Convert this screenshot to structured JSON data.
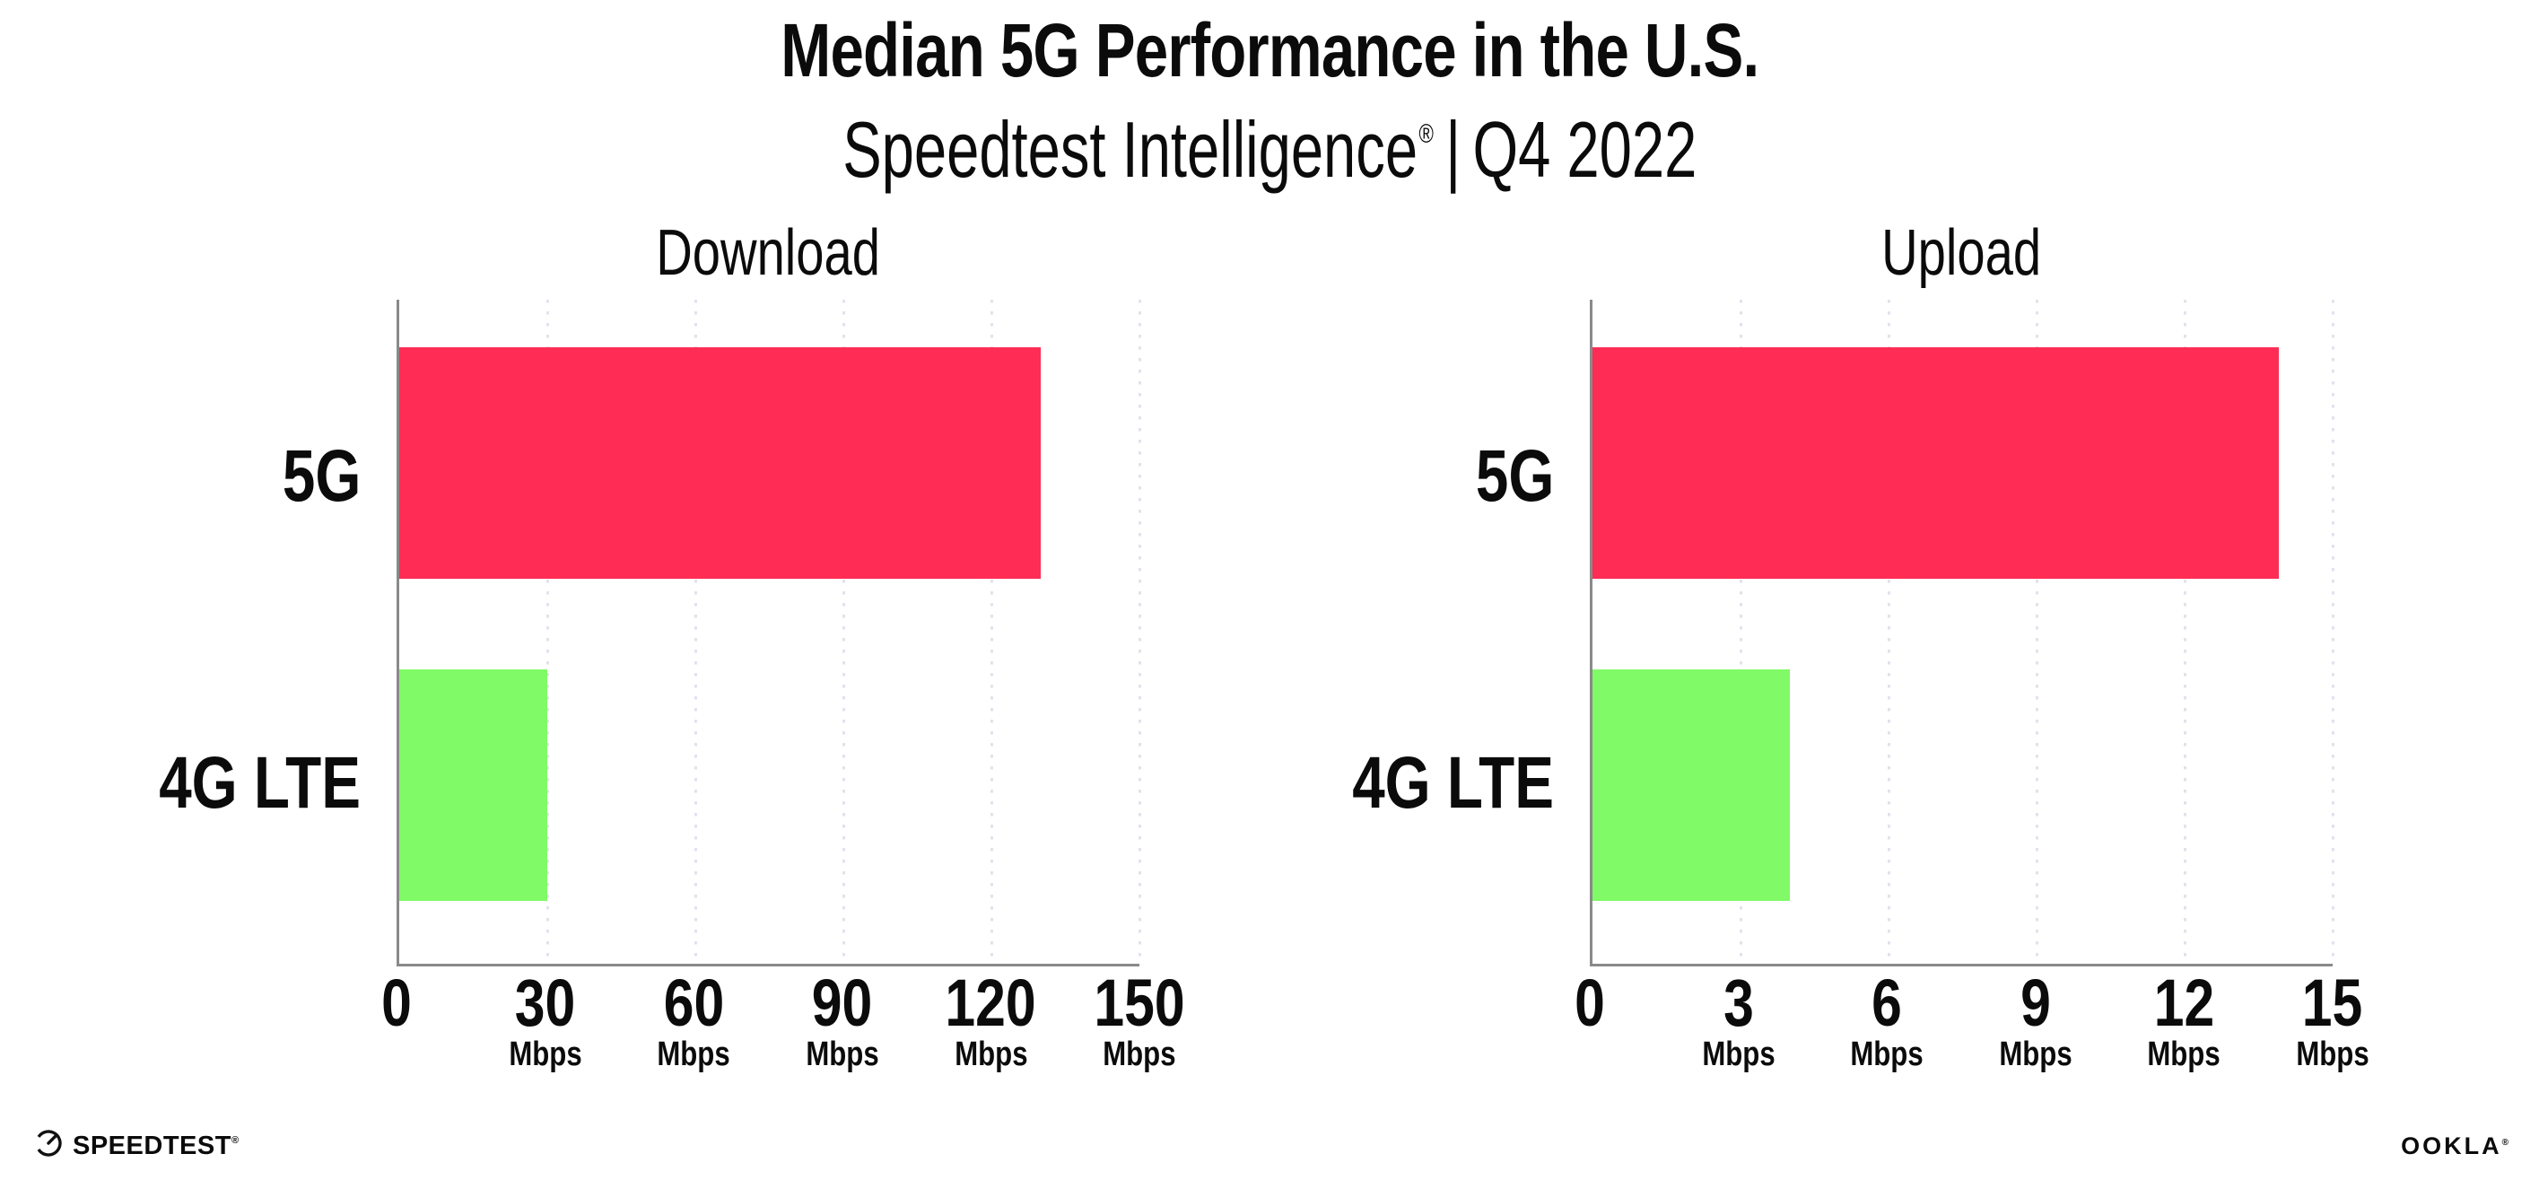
{
  "title": "Median 5G Performance in the U.S.",
  "subtitle": {
    "brand": "Speedtest Intelligence",
    "reg": "®",
    "sep": "|",
    "period": "Q4 2022"
  },
  "footer": {
    "speedtest_label": "SPEEDTEST",
    "speedtest_reg": "®",
    "ookla_label": "OOKLA",
    "ookla_reg": "®"
  },
  "colors": {
    "bar_5g": "#FF2D55",
    "bar_4g_lte": "#80FA66",
    "axis": "#8a8a8a",
    "grid": "#e1e2ec",
    "text": "#0b0b0b"
  },
  "chart_data": [
    {
      "type": "bar",
      "orientation": "horizontal",
      "title": "Download",
      "categories": [
        "5G",
        "4G LTE"
      ],
      "values": [
        130,
        30
      ],
      "unit": "Mbps",
      "xlim": [
        0,
        150
      ],
      "ticks": [
        0,
        30,
        60,
        90,
        120,
        150
      ],
      "series_colors": [
        "#FF2D55",
        "#80FA66"
      ],
      "grid": "vertical-dotted",
      "legend": "none"
    },
    {
      "type": "bar",
      "orientation": "horizontal",
      "title": "Upload",
      "categories": [
        "5G",
        "4G LTE"
      ],
      "values": [
        13.9,
        4
      ],
      "unit": "Mbps",
      "xlim": [
        0,
        15
      ],
      "ticks": [
        0,
        3,
        6,
        9,
        12,
        15
      ],
      "series_colors": [
        "#FF2D55",
        "#80FA66"
      ],
      "grid": "vertical-dotted",
      "legend": "none"
    }
  ]
}
